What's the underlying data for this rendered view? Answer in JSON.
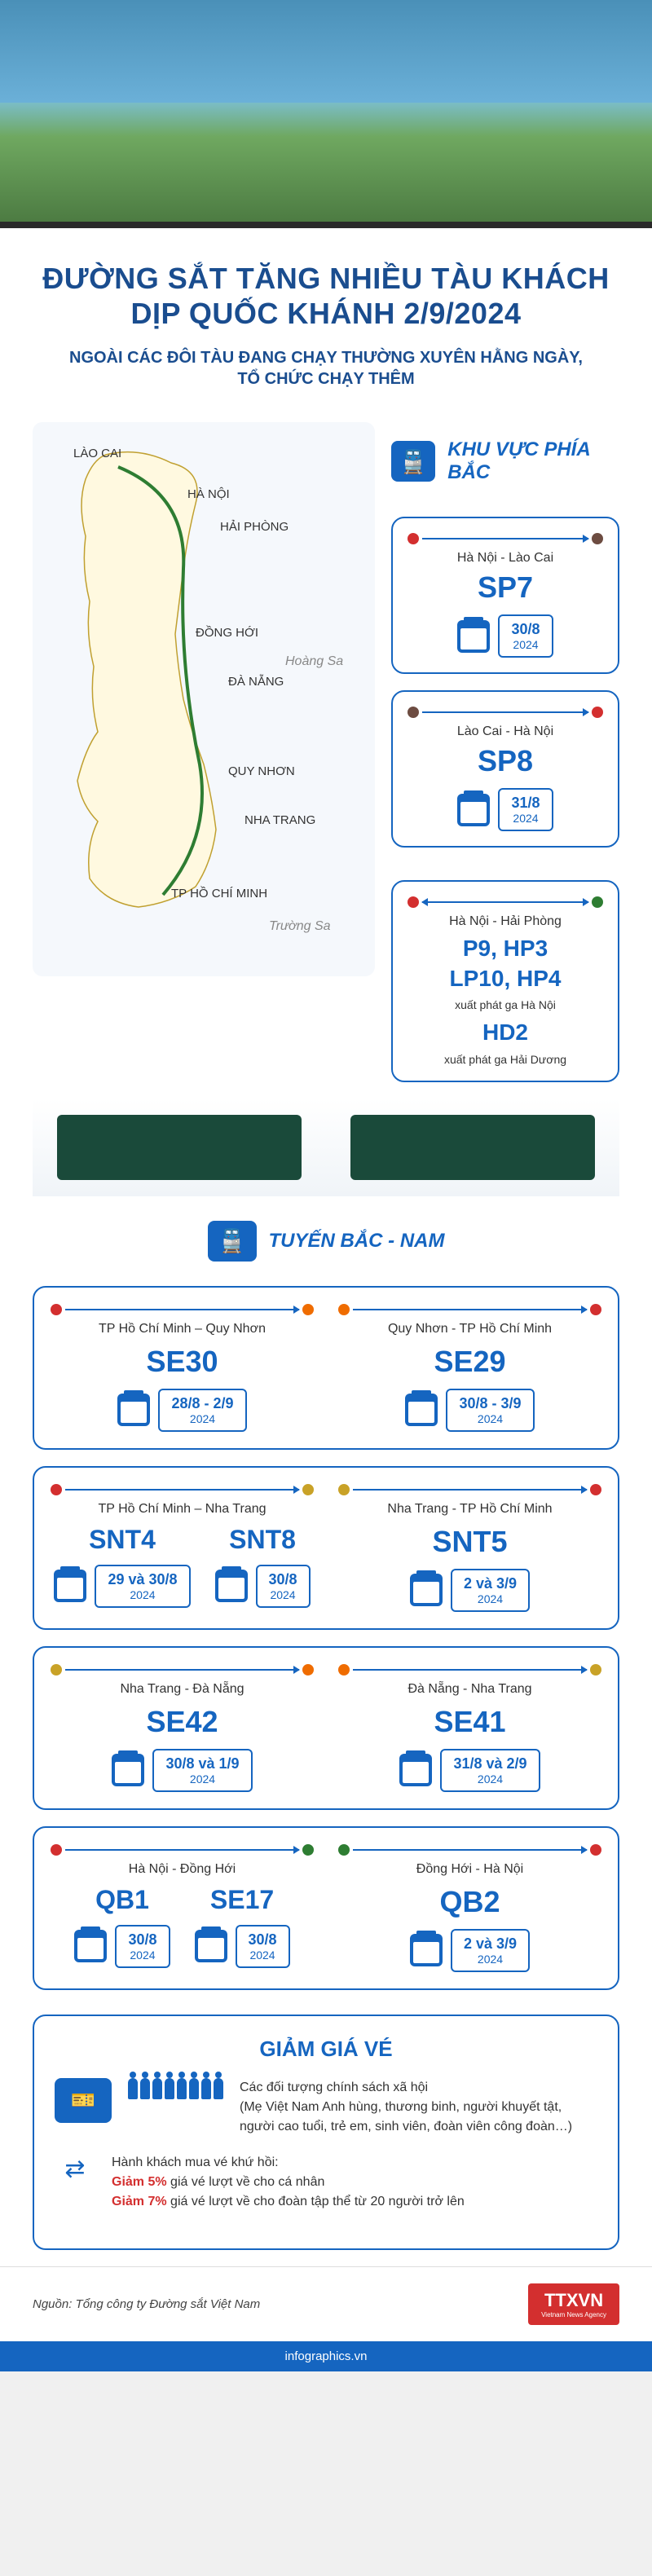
{
  "colors": {
    "primary": "#1565c0",
    "title": "#1a4d8f",
    "accent": "#d32f2f",
    "dot_red": "#d32f2f",
    "dot_brown": "#6d4c41",
    "dot_green": "#2e7d32",
    "dot_orange": "#ef6c00",
    "dot_yellow": "#c9a227"
  },
  "header": {
    "title_line1": "ĐƯỜNG SẮT TĂNG NHIỀU TÀU KHÁCH",
    "title_line2": "DỊP QUỐC KHÁNH 2/9/2024",
    "subtitle_line1": "NGOÀI CÁC ĐÔI TÀU ĐANG CHẠY THƯỜNG XUYÊN HẰNG NGÀY,",
    "subtitle_line2": "TỔ CHỨC CHẠY THÊM"
  },
  "regions": {
    "north_title": "KHU VỰC PHÍA BẮC",
    "ns_title": "TUYẾN BẮC - NAM"
  },
  "map_cities": {
    "laocai": "LÀO CAI",
    "hanoi": "HÀ NỘI",
    "haiphong": "HẢI PHÒNG",
    "donghoi": "ĐỒNG HỚI",
    "danang": "ĐÀ NẴNG",
    "quynhon": "QUY NHƠN",
    "nhatrang": "NHA TRANG",
    "hcm": "TP HỒ CHÍ MINH",
    "hoangsa": "Hoàng Sa",
    "truongsa": "Trường Sa"
  },
  "north_routes": [
    {
      "from": "Hà Nội",
      "to": "Lào Cai",
      "dot_from": "#d32f2f",
      "dot_to": "#6d4c41",
      "code": "SP7",
      "date": "30/8",
      "year": "2024"
    },
    {
      "from": "Lào Cai",
      "to": "Hà Nội",
      "dot_from": "#6d4c41",
      "dot_to": "#d32f2f",
      "code": "SP8",
      "date": "31/8",
      "year": "2024"
    }
  ],
  "haiphong": {
    "route": "Hà Nội - Hải Phòng",
    "dot_from": "#d32f2f",
    "dot_to": "#2e7d32",
    "codes_line1": "P9, HP3",
    "codes_line2": "LP10, HP4",
    "note1": "xuất phát ga Hà Nội",
    "code3": "HD2",
    "note2": "xuất phát ga Hải Dương"
  },
  "ns_routes": [
    {
      "left": {
        "route": "TP Hồ Chí Minh – Quy Nhơn",
        "dot_from": "#d32f2f",
        "dot_to": "#ef6c00",
        "code": "SE30",
        "date": "28/8 - 2/9",
        "year": "2024"
      },
      "right": {
        "route": "Quy Nhơn - TP Hồ Chí Minh",
        "dot_from": "#ef6c00",
        "dot_to": "#d32f2f",
        "code": "SE29",
        "date": "30/8 - 3/9",
        "year": "2024"
      }
    },
    {
      "left": {
        "route": "TP Hồ Chí Minh – Nha Trang",
        "dot_from": "#d32f2f",
        "dot_to": "#c9a227",
        "multi": [
          {
            "code": "SNT4",
            "date": "29 và 30/8",
            "year": "2024"
          },
          {
            "code": "SNT8",
            "date": "30/8",
            "year": "2024"
          }
        ]
      },
      "right": {
        "route": "Nha Trang - TP Hồ Chí Minh",
        "dot_from": "#c9a227",
        "dot_to": "#d32f2f",
        "code": "SNT5",
        "date": "2 và 3/9",
        "year": "2024"
      }
    },
    {
      "left": {
        "route": "Nha Trang - Đà Nẵng",
        "dot_from": "#c9a227",
        "dot_to": "#ef6c00",
        "code": "SE42",
        "date": "30/8 và 1/9",
        "year": "2024"
      },
      "right": {
        "route": "Đà Nẵng - Nha Trang",
        "dot_from": "#ef6c00",
        "dot_to": "#c9a227",
        "code": "SE41",
        "date": "31/8 và 2/9",
        "year": "2024"
      }
    },
    {
      "left": {
        "route": "Hà Nội - Đồng Hới",
        "dot_from": "#d32f2f",
        "dot_to": "#2e7d32",
        "multi": [
          {
            "code": "QB1",
            "date": "30/8",
            "year": "2024"
          },
          {
            "code": "SE17",
            "date": "30/8",
            "year": "2024"
          }
        ]
      },
      "right": {
        "route": "Đồng Hới - Hà Nội",
        "dot_from": "#2e7d32",
        "dot_to": "#d32f2f",
        "code": "QB2",
        "date": "2 và 3/9",
        "year": "2024"
      }
    }
  ],
  "discount": {
    "title": "GIẢM GIÁ VÉ",
    "policy_label": "Các đối tượng chính sách xã hội",
    "policy_detail": "(Mẹ Việt Nam Anh hùng, thương binh, người khuyết tật, người cao tuổi, trẻ em, sinh viên, đoàn viên công đoàn…)",
    "roundtrip_label": "Hành khách mua vé khứ hồi:",
    "pct5": "Giảm 5%",
    "pct5_text": "giá vé lượt về cho cá nhân",
    "pct7": "Giảm 7%",
    "pct7_text": "giá vé lượt về cho đoàn tập thể từ 20 người trở lên"
  },
  "footer": {
    "source": "Nguồn: Tổng công ty Đường sắt Việt Nam",
    "logo": "TTXVN",
    "logo_sub": "Vietnam News Agency",
    "url": "infographics.vn"
  }
}
